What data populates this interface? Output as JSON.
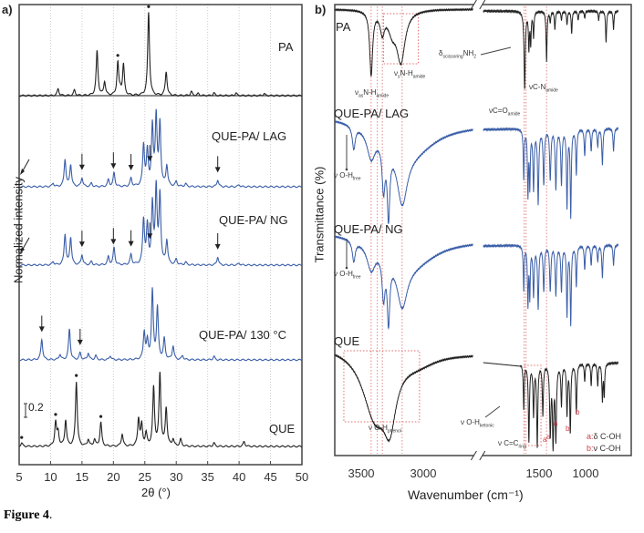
{
  "caption": {
    "bold": "Figure 4",
    "tail": "."
  },
  "chart_data": [
    {
      "panel": "a)",
      "type": "line",
      "xlabel": "2θ (°)",
      "ylabel": "Normalized intensity",
      "xlim": [
        5,
        50
      ],
      "xticks": [
        5,
        10,
        15,
        20,
        25,
        30,
        35,
        40,
        45,
        50
      ],
      "grid": "vertical dotted",
      "scale_bar": "0.2",
      "series": [
        {
          "name": "PA",
          "color": "#222222",
          "peaks": [
            [
              11.2,
              0.1
            ],
            [
              13.8,
              0.08
            ],
            [
              17.4,
              0.65
            ],
            [
              18.6,
              0.2
            ],
            [
              20.7,
              0.48
            ],
            [
              21.1,
              0.06
            ],
            [
              21.6,
              0.45
            ],
            [
              25.6,
              1.22
            ],
            [
              28.4,
              0.35
            ],
            [
              32.4,
              0.06
            ],
            [
              33.5,
              0.03
            ],
            [
              36,
              0.04
            ],
            [
              39.5,
              0.04
            ],
            [
              44,
              0.03
            ]
          ],
          "asterisks": [
            20.7,
            25.6
          ],
          "arrows": []
        },
        {
          "name": "QUE-PA/ LAG",
          "color": "#3a5ea8",
          "peaks": [
            [
              10.4,
              0.05
            ],
            [
              12.3,
              0.4
            ],
            [
              13.2,
              0.32
            ],
            [
              15,
              0.13
            ],
            [
              16.5,
              0.05
            ],
            [
              19.2,
              0.1
            ],
            [
              20.1,
              0.2
            ],
            [
              22.8,
              0.12
            ],
            [
              24.8,
              0.6
            ],
            [
              25.4,
              0.5
            ],
            [
              26.2,
              0.85
            ],
            [
              26.8,
              1.0
            ],
            [
              27.4,
              0.9
            ],
            [
              28.5,
              0.3
            ],
            [
              30,
              0.07
            ],
            [
              31.5,
              0.04
            ],
            [
              36.6,
              0.1
            ],
            [
              40,
              0.03
            ]
          ],
          "asterisks": [],
          "arrows": [
            5.2,
            15,
            20,
            22.8,
            25.8,
            36.6
          ]
        },
        {
          "name": "QUE-PA/ NG",
          "color": "#3a5ea8",
          "peaks": [
            [
              10.4,
              0.05
            ],
            [
              12.3,
              0.45
            ],
            [
              13.2,
              0.4
            ],
            [
              15,
              0.15
            ],
            [
              16.5,
              0.05
            ],
            [
              19.2,
              0.12
            ],
            [
              20.1,
              0.25
            ],
            [
              22.8,
              0.15
            ],
            [
              24.8,
              0.65
            ],
            [
              25.4,
              0.55
            ],
            [
              26.2,
              0.85
            ],
            [
              26.8,
              1.1
            ],
            [
              27.4,
              1.0
            ],
            [
              28.5,
              0.35
            ],
            [
              30,
              0.08
            ],
            [
              31.5,
              0.04
            ],
            [
              36.6,
              0.12
            ],
            [
              40,
              0.03
            ]
          ],
          "asterisks": [],
          "arrows": [
            5.2,
            15,
            20,
            22.8,
            25.8,
            36.6
          ]
        },
        {
          "name": "QUE-PA/ 130 °C",
          "color": "#3a5ea8",
          "peaks": [
            [
              8.6,
              0.3
            ],
            [
              11.5,
              0.08
            ],
            [
              13,
              0.45
            ],
            [
              14.7,
              0.1
            ],
            [
              16,
              0.1
            ],
            [
              17.2,
              0.06
            ],
            [
              19.5,
              0.06
            ],
            [
              24.9,
              0.4
            ],
            [
              25.4,
              0.25
            ],
            [
              26.2,
              1.0
            ],
            [
              27,
              0.75
            ],
            [
              28.1,
              0.3
            ],
            [
              29.5,
              0.2
            ],
            [
              31,
              0.06
            ],
            [
              36,
              0.05
            ]
          ],
          "asterisks": [],
          "arrows": [
            8.6,
            14.7
          ]
        },
        {
          "name": "QUE",
          "color": "#222222",
          "peaks": [
            [
              5.4,
              0.05
            ],
            [
              10.8,
              0.35
            ],
            [
              11.2,
              0.2
            ],
            [
              12.4,
              0.38
            ],
            [
              14.1,
              0.95
            ],
            [
              16,
              0.1
            ],
            [
              17,
              0.1
            ],
            [
              18,
              0.35
            ],
            [
              21.4,
              0.18
            ],
            [
              24,
              0.4
            ],
            [
              24.5,
              0.3
            ],
            [
              25.2,
              0.18
            ],
            [
              26.4,
              0.85
            ],
            [
              27.4,
              1.05
            ],
            [
              28.4,
              0.55
            ],
            [
              29.5,
              0.1
            ],
            [
              30.7,
              0.1
            ],
            [
              36,
              0.05
            ],
            [
              40.8,
              0.07
            ]
          ],
          "asterisks": [
            5.4,
            10.8,
            14.1,
            18
          ],
          "arrows": []
        }
      ]
    },
    {
      "panel": "b)",
      "type": "line",
      "xlabel": "Wavenumber (cm⁻¹)",
      "ylabel": "Transmittance  (%)",
      "xticks": [
        3500,
        3000,
        1500,
        1000
      ],
      "axis_break": [
        2600,
        2100
      ],
      "reference_lines": [
        3420,
        3370,
        3330,
        3170,
        1660,
        1640,
        1420
      ],
      "series": [
        {
          "name": "PA",
          "color": "#222222",
          "bands": [
            [
              3420,
              70,
              14
            ],
            [
              3330,
              22,
              20
            ],
            [
              3180,
              55,
              40
            ],
            [
              3250,
              20,
              40
            ],
            [
              1655,
              85,
              8
            ],
            [
              1610,
              40,
              6
            ],
            [
              1590,
              35,
              6
            ],
            [
              1560,
              28,
              6
            ],
            [
              1420,
              55,
              6
            ],
            [
              1380,
              12,
              6
            ],
            [
              1330,
              20,
              6
            ],
            [
              1260,
              10,
              6
            ],
            [
              1200,
              15,
              6
            ],
            [
              1150,
              25,
              6
            ],
            [
              1080,
              10,
              6
            ],
            [
              1010,
              8,
              6
            ],
            [
              860,
              10,
              6
            ],
            [
              780,
              35,
              6
            ],
            [
              700,
              20,
              6
            ]
          ]
        },
        {
          "name": "QUE-PA/ LAG",
          "color": "#3a5ea8",
          "bands": [
            [
              3560,
              25,
              14
            ],
            [
              3420,
              30,
              40
            ],
            [
              3320,
              50,
              14
            ],
            [
              3280,
              75,
              12
            ],
            [
              3170,
              60,
              50
            ],
            [
              3100,
              35,
              250
            ],
            [
              1665,
              55,
              6
            ],
            [
              1620,
              70,
              6
            ],
            [
              1600,
              60,
              6
            ],
            [
              1560,
              65,
              8
            ],
            [
              1510,
              80,
              8
            ],
            [
              1450,
              60,
              8
            ],
            [
              1380,
              55,
              8
            ],
            [
              1320,
              65,
              8
            ],
            [
              1260,
              60,
              8
            ],
            [
              1200,
              85,
              7
            ],
            [
              1160,
              95,
              7
            ],
            [
              1100,
              50,
              7
            ],
            [
              1010,
              30,
              7
            ],
            [
              940,
              25,
              7
            ],
            [
              870,
              20,
              7
            ],
            [
              820,
              40,
              7
            ],
            [
              700,
              25,
              7
            ]
          ]
        },
        {
          "name": "QUE-PA/ NG",
          "color": "#3a5ea8",
          "bands": [
            [
              3560,
              25,
              14
            ],
            [
              3420,
              30,
              40
            ],
            [
              3320,
              50,
              14
            ],
            [
              3280,
              75,
              12
            ],
            [
              3170,
              55,
              50
            ],
            [
              3100,
              35,
              250
            ],
            [
              1665,
              55,
              6
            ],
            [
              1620,
              70,
              6
            ],
            [
              1600,
              60,
              6
            ],
            [
              1560,
              60,
              8
            ],
            [
              1510,
              75,
              8
            ],
            [
              1450,
              55,
              8
            ],
            [
              1380,
              55,
              8
            ],
            [
              1320,
              60,
              8
            ],
            [
              1260,
              55,
              8
            ],
            [
              1200,
              85,
              7
            ],
            [
              1160,
              95,
              7
            ],
            [
              1100,
              50,
              7
            ],
            [
              1010,
              30,
              7
            ],
            [
              940,
              25,
              7
            ],
            [
              870,
              20,
              7
            ],
            [
              820,
              40,
              7
            ],
            [
              700,
              25,
              7
            ]
          ]
        },
        {
          "name": "QUE",
          "color": "#222222",
          "bands": [
            [
              3390,
              70,
              120
            ],
            [
              3270,
              60,
              60
            ],
            [
              3050,
              12,
              200
            ],
            [
              1665,
              50,
              6
            ],
            [
              1610,
              85,
              7
            ],
            [
              1560,
              55,
              7
            ],
            [
              1520,
              90,
              7
            ],
            [
              1460,
              55,
              7
            ],
            [
              1380,
              75,
              8
            ],
            [
              1350,
              85,
              8
            ],
            [
              1320,
              80,
              8
            ],
            [
              1260,
              45,
              7
            ],
            [
              1200,
              55,
              7
            ],
            [
              1165,
              75,
              7
            ],
            [
              1100,
              55,
              7
            ],
            [
              1010,
              20,
              6
            ],
            [
              940,
              25,
              6
            ],
            [
              870,
              25,
              6
            ],
            [
              820,
              40,
              6
            ],
            [
              800,
              35,
              6
            ]
          ]
        }
      ],
      "annotations": {
        "vas_nh": {
          "main": "ν",
          "sub1": "as",
          "mid": "N-H",
          "sub2": "amide"
        },
        "vs_nh": {
          "main": "ν",
          "sub1": "s",
          "mid": "N-H",
          "sub2": "amide"
        },
        "delta_nh2": {
          "main": "δ",
          "sub1": "scissoring",
          "mid": "NH",
          "sub2": "2"
        },
        "vco": {
          "main": "νC=O",
          "sub2": "amide"
        },
        "vcn": {
          "main": "νC-N",
          "sub2": "amide"
        },
        "voh_free_1": {
          "main": "ν O-H",
          "sub2": "free"
        },
        "voh_free_2": {
          "main": "ν O-H",
          "sub2": "free"
        },
        "voh_phenol": {
          "main": "ν O-H",
          "sub2": "phenol"
        },
        "voh_ketonic": {
          "main": "ν O-H",
          "sub2": "ketonic"
        },
        "vcc_ring": {
          "main": "ν C=C",
          "sub2": "ring"
        },
        "markers": [
          "a",
          "a",
          "a",
          "b",
          "b"
        ],
        "legend_a": {
          "key": "a:",
          "text": "δ C-OH"
        },
        "legend_b": {
          "key": "b:",
          "text": "ν C-OH"
        }
      }
    }
  ]
}
